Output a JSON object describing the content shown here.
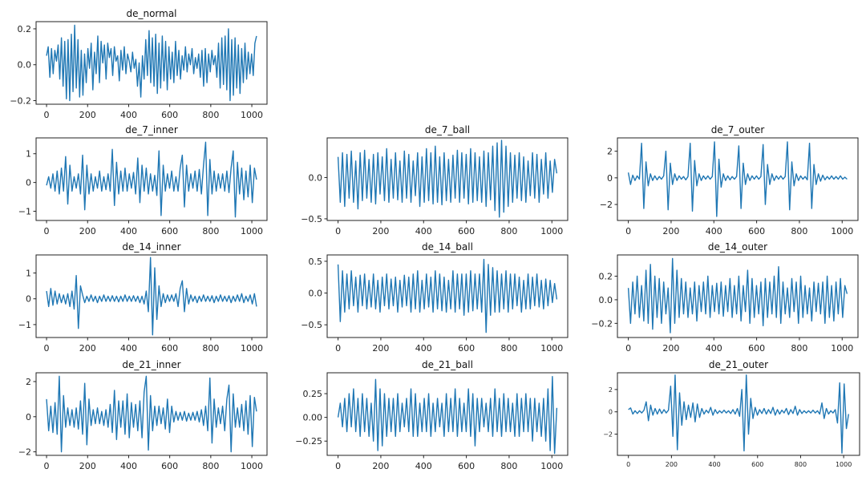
{
  "chart_data": [
    {
      "type": "line",
      "title": "de_normal",
      "xlim": [
        -51,
        1074
      ],
      "ylim": [
        -0.22,
        0.24
      ],
      "xticks": [
        0,
        200,
        400,
        600,
        800,
        1000
      ],
      "yticks": [
        -0.2,
        0.0,
        0.2
      ],
      "ytick_labels": [
        "−0.2",
        "0.0",
        "0.2"
      ],
      "x_range": [
        0,
        1023
      ],
      "values": [
        0.05,
        0.1,
        -0.07,
        0.09,
        -0.05,
        0.08,
        0.02,
        0.11,
        -0.08,
        0.15,
        -0.12,
        0.13,
        -0.19,
        0.14,
        -0.2,
        0.17,
        -0.15,
        0.22,
        -0.13,
        0.14,
        -0.18,
        0.08,
        -0.17,
        0.06,
        -0.1,
        0.09,
        -0.02,
        0.12,
        -0.14,
        0.07,
        -0.05,
        0.16,
        -0.1,
        0.13,
        0.01,
        0.11,
        -0.08,
        0.12,
        0.04,
        0.09,
        -0.06,
        0.1,
        0.02,
        0.05,
        -0.09,
        0.08,
        -0.03,
        0.1,
        -0.05,
        0.06,
        0.02,
        -0.04,
        0.07,
        -0.02,
        0.03,
        -0.12,
        0.01,
        -0.18,
        0.05,
        -0.08,
        0.14,
        -0.06,
        0.19,
        -0.1,
        0.15,
        -0.12,
        0.17,
        -0.16,
        0.12,
        -0.13,
        0.16,
        -0.09,
        0.13,
        -0.14,
        0.1,
        -0.08,
        0.07,
        -0.1,
        0.13,
        -0.06,
        0.08,
        -0.08,
        0.05,
        -0.03,
        0.1,
        -0.04,
        0.06,
        0.0,
        0.09,
        -0.05,
        0.04,
        -0.02,
        0.06,
        -0.07,
        0.08,
        -0.12,
        0.09,
        -0.1,
        0.06,
        -0.04,
        0.08,
        0.0,
        0.05,
        -0.07,
        0.12,
        -0.13,
        0.15,
        -0.11,
        0.16,
        -0.14,
        0.2,
        -0.2,
        0.14,
        -0.17,
        0.15,
        -0.13,
        0.11,
        -0.16,
        0.09,
        -0.1,
        0.12,
        -0.08,
        0.07,
        -0.05,
        0.06,
        -0.06,
        0.12,
        0.16
      ]
    },
    {
      "type": "line",
      "title": "de_7_inner",
      "xlim": [
        -51,
        1074
      ],
      "ylim": [
        -1.32,
        1.55
      ],
      "xticks": [
        0,
        200,
        400,
        600,
        800,
        1000
      ],
      "yticks": [
        -1,
        0,
        1
      ],
      "ytick_labels": [
        "−1",
        "0",
        "1"
      ],
      "x_range": [
        0,
        1023
      ],
      "values": [
        -0.1,
        0.2,
        -0.2,
        0.3,
        -0.3,
        0.4,
        -0.4,
        0.5,
        -0.3,
        0.9,
        -0.75,
        0.6,
        -0.3,
        0.2,
        -0.2,
        0.3,
        -0.4,
        0.95,
        -0.95,
        0.6,
        -0.4,
        0.3,
        -0.3,
        0.2,
        -0.2,
        0.4,
        -0.3,
        0.2,
        -0.25,
        0.3,
        -0.3,
        1.15,
        -0.8,
        0.7,
        -0.4,
        0.4,
        -0.3,
        0.5,
        -0.3,
        0.3,
        -0.2,
        0.35,
        -0.4,
        0.85,
        -0.7,
        0.6,
        -0.3,
        0.5,
        -0.4,
        0.3,
        -0.3,
        0.25,
        -0.45,
        1.1,
        -1.15,
        0.6,
        -0.3,
        0.3,
        -0.2,
        0.4,
        -0.3,
        0.2,
        -0.3,
        0.5,
        0.95,
        -0.85,
        0.6,
        -0.3,
        0.3,
        -0.2,
        0.4,
        -0.3,
        0.45,
        -0.4,
        0.6,
        1.4,
        -1.15,
        0.8,
        -0.4,
        0.4,
        -0.3,
        0.3,
        -0.2,
        0.3,
        -0.3,
        0.4,
        -0.35,
        0.5,
        1.1,
        -1.2,
        0.7,
        -0.4,
        0.5,
        -0.6,
        0.4,
        -0.5,
        0.6,
        -0.7,
        0.5,
        0.1
      ]
    },
    {
      "type": "line",
      "title": "de_7_ball",
      "xlim": [
        -51,
        1074
      ],
      "ylim": [
        -0.52,
        0.48
      ],
      "xticks": [
        0,
        200,
        400,
        600,
        800,
        1000
      ],
      "yticks": [
        -0.5,
        0.0
      ],
      "ytick_labels": [
        "−0.5",
        "0.0"
      ],
      "x_range": [
        0,
        1023
      ],
      "values": [
        0.25,
        -0.3,
        0.3,
        -0.35,
        0.28,
        -0.25,
        0.32,
        -0.3,
        0.2,
        -0.38,
        0.3,
        -0.28,
        0.33,
        -0.25,
        0.22,
        -0.3,
        0.28,
        -0.32,
        0.3,
        -0.2,
        0.25,
        -0.28,
        0.35,
        -0.3,
        0.22,
        -0.25,
        0.3,
        -0.27,
        0.2,
        -0.3,
        0.32,
        -0.25,
        0.28,
        -0.3,
        0.2,
        -0.22,
        0.3,
        -0.35,
        0.25,
        -0.3,
        0.35,
        -0.28,
        0.3,
        -0.32,
        0.38,
        -0.3,
        0.25,
        -0.33,
        0.3,
        -0.28,
        0.22,
        -0.3,
        0.27,
        -0.25,
        0.33,
        -0.3,
        0.3,
        -0.25,
        0.28,
        -0.32,
        0.35,
        -0.3,
        0.3,
        -0.28,
        0.25,
        -0.3,
        0.32,
        -0.35,
        0.3,
        -0.27,
        0.38,
        -0.4,
        0.42,
        -0.48,
        0.45,
        -0.42,
        0.38,
        -0.35,
        0.3,
        -0.3,
        0.27,
        -0.25,
        0.3,
        -0.28,
        0.25,
        -0.3,
        0.2,
        -0.22,
        0.3,
        -0.25,
        0.28,
        -0.3,
        0.22,
        -0.2,
        0.3,
        -0.25,
        0.2,
        -0.18,
        0.22,
        0.05
      ]
    },
    {
      "type": "line",
      "title": "de_7_outer",
      "xlim": [
        -51,
        1074
      ],
      "ylim": [
        -3.2,
        3.0
      ],
      "xticks": [
        0,
        200,
        400,
        600,
        800,
        1000
      ],
      "yticks": [
        -2,
        0,
        2
      ],
      "ytick_labels": [
        "−2",
        "0",
        "2"
      ],
      "x_range": [
        0,
        1023
      ],
      "values": [
        0.4,
        -0.5,
        0.2,
        -0.2,
        0.15,
        -0.1,
        2.6,
        -2.3,
        1.2,
        -0.6,
        0.3,
        -0.2,
        0.15,
        -0.15,
        0.1,
        -0.1,
        0.15,
        2.0,
        -2.4,
        1.1,
        -0.5,
        0.3,
        -0.2,
        0.15,
        -0.1,
        0.1,
        -0.15,
        0.1,
        2.6,
        -2.5,
        1.3,
        -0.6,
        0.3,
        -0.2,
        0.15,
        -0.1,
        0.15,
        -0.1,
        0.1,
        2.7,
        -2.9,
        1.4,
        -0.7,
        0.3,
        -0.2,
        0.15,
        -0.15,
        0.1,
        -0.1,
        0.1,
        2.4,
        -2.3,
        1.1,
        -0.5,
        0.3,
        -0.2,
        0.15,
        -0.1,
        0.15,
        -0.1,
        0.1,
        2.5,
        -2.0,
        1.0,
        -0.5,
        0.3,
        -0.2,
        0.15,
        -0.1,
        0.15,
        -0.1,
        0.1,
        2.7,
        -2.4,
        1.2,
        -0.6,
        0.3,
        -0.2,
        0.15,
        -0.1,
        0.1,
        -0.15,
        2.6,
        -2.3,
        1.0,
        -0.5,
        0.3,
        -0.25,
        0.2,
        -0.15,
        0.1,
        -0.1,
        0.15,
        -0.1,
        0.1,
        -0.1,
        0.15,
        -0.1,
        0.05,
        -0.1
      ]
    },
    {
      "type": "line",
      "title": "de_14_inner",
      "xlim": [
        -51,
        1074
      ],
      "ylim": [
        -1.5,
        1.7
      ],
      "xticks": [
        0,
        200,
        400,
        600,
        800,
        1000
      ],
      "yticks": [
        -1,
        0,
        1
      ],
      "ytick_labels": [
        "−1",
        "0",
        "1"
      ],
      "x_range": [
        0,
        1023
      ],
      "values": [
        0.3,
        -0.3,
        0.4,
        -0.25,
        0.3,
        -0.2,
        0.2,
        -0.15,
        0.15,
        -0.2,
        0.2,
        -0.3,
        0.3,
        -0.4,
        0.9,
        -1.15,
        0.5,
        0.15,
        -0.15,
        0.1,
        -0.1,
        0.15,
        -0.1,
        0.1,
        -0.15,
        0.1,
        -0.1,
        0.15,
        -0.1,
        0.1,
        -0.1,
        0.12,
        -0.1,
        0.1,
        -0.12,
        0.1,
        -0.1,
        0.15,
        -0.1,
        0.1,
        -0.1,
        0.12,
        -0.1,
        0.1,
        -0.15,
        0.1,
        -0.2,
        0.3,
        -0.5,
        1.6,
        -1.4,
        1.2,
        -0.8,
        0.5,
        -0.3,
        0.2,
        -0.15,
        0.15,
        -0.1,
        0.15,
        -0.1,
        0.2,
        -0.3,
        0.4,
        0.7,
        -0.5,
        0.4,
        -0.2,
        0.15,
        -0.1,
        0.1,
        -0.15,
        0.1,
        -0.1,
        0.15,
        -0.1,
        0.1,
        -0.1,
        0.12,
        -0.15,
        0.1,
        -0.1,
        0.15,
        -0.1,
        0.1,
        -0.1,
        0.12,
        -0.15,
        0.1,
        -0.1,
        0.15,
        -0.1,
        0.2,
        -0.15,
        0.1,
        -0.1,
        0.15,
        -0.2,
        0.2,
        -0.3
      ]
    },
    {
      "type": "line",
      "title": "de_14_ball",
      "xlim": [
        -51,
        1074
      ],
      "ylim": [
        -0.7,
        0.6
      ],
      "xticks": [
        0,
        200,
        400,
        600,
        800,
        1000
      ],
      "yticks": [
        -0.5,
        0.0,
        0.5
      ],
      "ytick_labels": [
        "−0.5",
        "0.0",
        "0.5"
      ],
      "x_range": [
        0,
        1023
      ],
      "values": [
        0.45,
        -0.45,
        0.35,
        -0.3,
        0.3,
        -0.25,
        0.35,
        -0.2,
        0.25,
        -0.3,
        0.28,
        -0.2,
        0.3,
        -0.25,
        0.2,
        -0.22,
        0.3,
        -0.25,
        0.2,
        -0.3,
        0.25,
        -0.2,
        0.3,
        -0.25,
        0.22,
        -0.2,
        0.25,
        -0.3,
        0.2,
        -0.22,
        0.28,
        -0.2,
        0.25,
        -0.3,
        0.3,
        -0.25,
        0.35,
        -0.3,
        0.2,
        -0.25,
        0.3,
        -0.22,
        0.25,
        -0.3,
        0.35,
        -0.25,
        0.3,
        -0.28,
        0.25,
        -0.3,
        0.2,
        -0.25,
        0.35,
        -0.3,
        0.3,
        -0.25,
        0.3,
        -0.35,
        0.3,
        -0.3,
        0.35,
        -0.28,
        0.3,
        -0.25,
        0.3,
        -0.3,
        0.53,
        -0.62,
        0.45,
        -0.35,
        0.4,
        -0.3,
        0.35,
        -0.3,
        0.3,
        -0.25,
        0.35,
        -0.3,
        0.3,
        -0.25,
        0.3,
        -0.2,
        0.25,
        -0.3,
        0.2,
        -0.25,
        0.3,
        -0.25,
        0.25,
        -0.2,
        0.3,
        -0.22,
        0.2,
        -0.25,
        0.22,
        -0.2,
        0.2,
        -0.15,
        0.15,
        -0.1
      ]
    },
    {
      "type": "line",
      "title": "de_14_outer",
      "xlim": [
        -51,
        1074
      ],
      "ylim": [
        -0.32,
        0.38
      ],
      "xticks": [
        0,
        200,
        400,
        600,
        800,
        1000
      ],
      "yticks": [
        -0.2,
        0.0,
        0.2
      ],
      "ytick_labels": [
        "−0.2",
        "0.0",
        "0.2"
      ],
      "x_range": [
        0,
        1023
      ],
      "values": [
        0.1,
        -0.2,
        0.15,
        -0.12,
        0.2,
        -0.15,
        0.12,
        -0.18,
        0.25,
        -0.2,
        0.3,
        -0.25,
        0.2,
        -0.15,
        0.18,
        -0.2,
        0.15,
        -0.12,
        0.1,
        -0.28,
        0.35,
        -0.2,
        0.25,
        -0.15,
        0.18,
        -0.12,
        0.15,
        -0.15,
        0.1,
        -0.12,
        0.15,
        -0.18,
        0.12,
        -0.1,
        0.15,
        -0.12,
        0.2,
        -0.15,
        0.12,
        -0.1,
        0.14,
        -0.12,
        0.15,
        -0.14,
        0.12,
        -0.1,
        0.18,
        -0.15,
        0.12,
        -0.12,
        0.2,
        -0.18,
        0.12,
        -0.1,
        0.25,
        -0.2,
        0.18,
        -0.15,
        0.12,
        -0.12,
        0.15,
        -0.22,
        0.18,
        -0.15,
        0.15,
        -0.12,
        0.2,
        -0.15,
        0.28,
        -0.2,
        0.15,
        -0.12,
        0.1,
        -0.15,
        0.18,
        -0.1,
        0.15,
        -0.2,
        0.2,
        -0.15,
        0.12,
        -0.12,
        0.1,
        -0.18,
        0.15,
        -0.1,
        0.14,
        -0.12,
        0.15,
        -0.2,
        0.2,
        -0.15,
        0.12,
        -0.18,
        0.15,
        -0.12,
        0.18,
        -0.15,
        0.12,
        0.05
      ]
    },
    {
      "type": "line",
      "title": "de_21_inner",
      "xlim": [
        -51,
        1074
      ],
      "ylim": [
        -2.2,
        2.5
      ],
      "xticks": [
        0,
        200,
        400,
        600,
        800,
        1000
      ],
      "yticks": [
        -2,
        0,
        2
      ],
      "ytick_labels": [
        "−2",
        "0",
        "2"
      ],
      "x_range": [
        0,
        1023
      ],
      "values": [
        1.0,
        -0.8,
        0.6,
        -0.9,
        0.8,
        -1.0,
        2.3,
        -2.0,
        1.2,
        -0.6,
        0.5,
        -0.5,
        0.4,
        -0.6,
        0.5,
        -0.7,
        0.9,
        -1.0,
        1.9,
        -1.6,
        1.0,
        -0.5,
        0.4,
        -0.4,
        0.5,
        -0.4,
        0.3,
        -0.5,
        0.4,
        -0.6,
        0.7,
        -0.9,
        1.5,
        -1.3,
        0.9,
        -0.6,
        0.9,
        -1.0,
        1.3,
        -1.2,
        0.8,
        -0.6,
        0.7,
        -0.8,
        0.9,
        -1.2,
        1.4,
        2.3,
        -1.9,
        1.2,
        -0.8,
        0.6,
        -0.5,
        0.6,
        -0.4,
        0.5,
        -0.7,
        1.0,
        -0.9,
        0.6,
        -0.3,
        0.3,
        -0.2,
        0.25,
        -0.2,
        0.3,
        -0.25,
        0.2,
        -0.2,
        0.25,
        -0.2,
        0.3,
        -0.3,
        0.4,
        -0.5,
        0.6,
        -0.8,
        2.2,
        -1.5,
        1.0,
        -0.6,
        0.5,
        -0.4,
        0.6,
        -0.8,
        1.0,
        1.8,
        -2.0,
        1.3,
        -0.6,
        0.5,
        -0.6,
        0.7,
        -0.8,
        0.9,
        -1.0,
        1.2,
        -1.7,
        1.1,
        0.3
      ]
    },
    {
      "type": "line",
      "title": "de_21_ball",
      "xlim": [
        -51,
        1074
      ],
      "ylim": [
        -0.4,
        0.47
      ],
      "xticks": [
        0,
        200,
        400,
        600,
        800,
        1000
      ],
      "yticks": [
        -0.25,
        0.0,
        0.25
      ],
      "ytick_labels": [
        "−0.25",
        "0.00",
        "0.25"
      ],
      "x_range": [
        0,
        1023
      ],
      "values": [
        0.0,
        0.15,
        -0.1,
        0.2,
        -0.15,
        0.25,
        -0.1,
        0.3,
        -0.15,
        0.2,
        -0.2,
        0.25,
        -0.15,
        0.2,
        -0.2,
        0.15,
        -0.25,
        0.4,
        -0.35,
        0.3,
        -0.3,
        0.25,
        -0.2,
        0.2,
        -0.15,
        0.2,
        -0.2,
        0.25,
        -0.15,
        0.15,
        -0.1,
        0.2,
        -0.15,
        0.3,
        -0.2,
        0.25,
        -0.2,
        0.15,
        -0.15,
        0.2,
        -0.15,
        0.25,
        -0.2,
        0.15,
        -0.15,
        0.2,
        -0.1,
        0.15,
        -0.2,
        0.25,
        -0.15,
        0.2,
        -0.15,
        0.3,
        -0.2,
        0.2,
        -0.15,
        0.15,
        -0.15,
        0.3,
        -0.2,
        0.25,
        -0.3,
        0.2,
        -0.15,
        0.2,
        -0.1,
        0.15,
        -0.15,
        0.2,
        -0.2,
        0.3,
        -0.15,
        0.2,
        -0.2,
        0.25,
        -0.15,
        0.2,
        -0.15,
        0.15,
        -0.2,
        0.25,
        -0.2,
        0.2,
        -0.15,
        0.25,
        -0.15,
        0.2,
        -0.25,
        0.2,
        -0.15,
        0.15,
        -0.2,
        0.2,
        -0.25,
        0.3,
        -0.35,
        0.43,
        -0.38,
        0.1
      ]
    },
    {
      "type": "line",
      "title": "de_21_outer",
      "xlim": [
        -51,
        1074
      ],
      "ylim": [
        -3.9,
        3.5
      ],
      "xticks": [
        0,
        200,
        400,
        600,
        800,
        1000
      ],
      "yticks": [
        -2,
        0,
        2
      ],
      "ytick_labels": [
        "−2",
        "0",
        "2"
      ],
      "x_range": [
        0,
        1023
      ],
      "small_ticks": true,
      "values": [
        0.2,
        0.35,
        -0.2,
        0.1,
        -0.15,
        0.1,
        -0.1,
        0.15,
        0.9,
        -0.8,
        0.6,
        -0.3,
        0.3,
        -0.2,
        0.25,
        -0.15,
        0.2,
        -0.1,
        0.15,
        2.3,
        -2.2,
        3.3,
        -3.4,
        1.7,
        -1.2,
        0.9,
        -0.7,
        0.6,
        -0.5,
        0.8,
        -0.9,
        0.7,
        -0.5,
        0.3,
        -0.2,
        0.15,
        -0.1,
        0.4,
        -0.3,
        0.2,
        -0.15,
        0.1,
        -0.1,
        0.15,
        -0.1,
        0.1,
        -0.15,
        0.2,
        -0.2,
        0.3,
        -0.4,
        2.0,
        -3.5,
        3.3,
        -2.0,
        1.2,
        -0.6,
        0.4,
        -0.3,
        0.2,
        -0.15,
        0.3,
        -0.2,
        0.2,
        -0.15,
        0.4,
        -0.3,
        0.2,
        -0.2,
        0.15,
        -0.1,
        0.3,
        -0.25,
        0.2,
        -0.15,
        0.5,
        -0.3,
        0.2,
        -0.15,
        0.1,
        -0.1,
        0.1,
        -0.1,
        0.15,
        -0.1,
        0.1,
        -0.2,
        0.8,
        -0.6,
        0.3,
        -0.2,
        0.1,
        -0.1,
        0.2,
        -1.0,
        2.6,
        -3.7,
        2.5,
        -1.5,
        -0.2
      ]
    }
  ],
  "colors": {
    "line": "#1f77b4",
    "axes": "#222222"
  }
}
